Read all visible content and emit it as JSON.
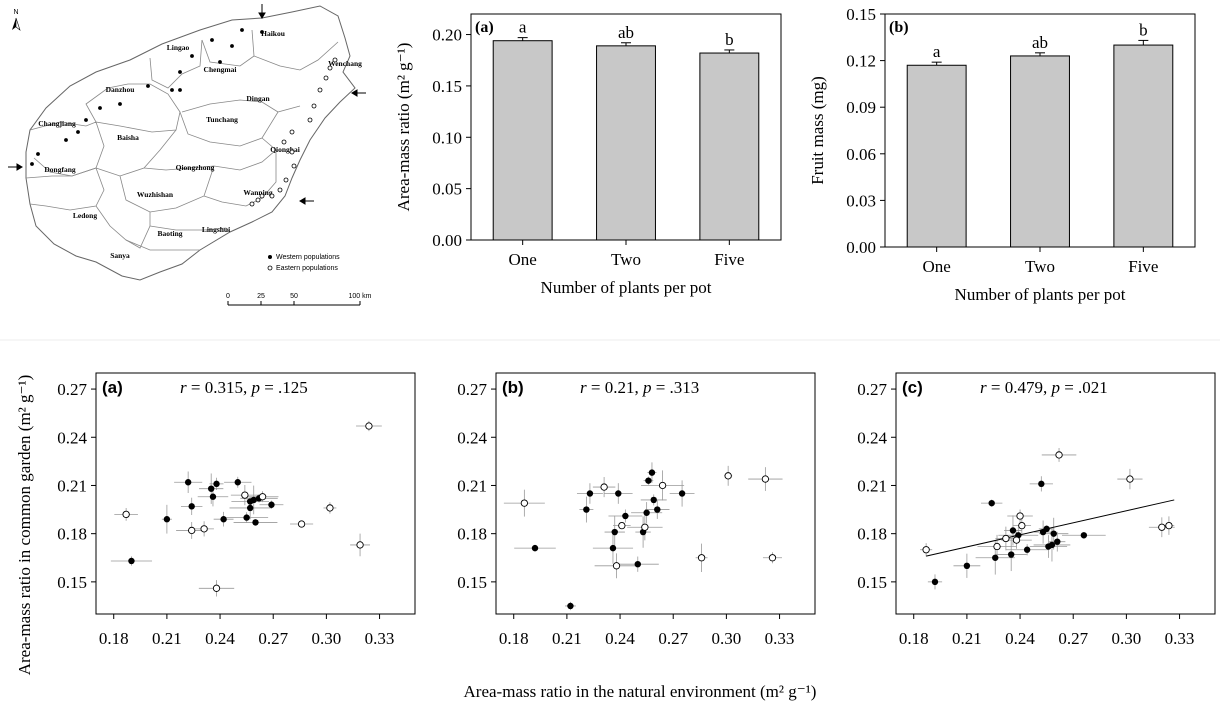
{
  "colors": {
    "bar_fill": "#c8c8c8",
    "axis": "#000000",
    "western_dot": "#000000",
    "eastern_dot": "#ffffff",
    "errbar": "#999999",
    "map_line": "#666666"
  },
  "map": {
    "regions": [
      "Lingao",
      "Haikou",
      "Chengmai",
      "Wenchang",
      "Danzhou",
      "Dingan",
      "Tunchang",
      "Changjiang",
      "Baisha",
      "Qionghai",
      "Qiongzhong",
      "Dongfang",
      "Wuzhishan",
      "Wanning",
      "Ledong",
      "Baoting",
      "Lingshui",
      "Sanya"
    ],
    "legend": {
      "western": "Western populations",
      "eastern": "Eastern populations"
    },
    "scale_labels": [
      "0",
      "25",
      "50",
      "100 km"
    ],
    "north": "N"
  },
  "chart_data": [
    {
      "type": "bar",
      "panel": "(a)",
      "categories": [
        "One",
        "Two",
        "Five"
      ],
      "values": [
        0.194,
        0.189,
        0.182
      ],
      "errors": [
        0.003,
        0.003,
        0.003
      ],
      "letters": [
        "a",
        "ab",
        "b"
      ],
      "xlabel": "Number of plants per pot",
      "ylabel": "Area-mass ratio (m² g⁻¹)",
      "ylim": [
        0,
        0.22
      ],
      "yticks": [
        "0.00",
        "0.05",
        "0.10",
        "0.15",
        "0.20"
      ]
    },
    {
      "type": "bar",
      "panel": "(b)",
      "categories": [
        "One",
        "Two",
        "Five"
      ],
      "values": [
        0.117,
        0.123,
        0.13
      ],
      "errors": [
        0.002,
        0.002,
        0.003
      ],
      "letters": [
        "a",
        "ab",
        "b"
      ],
      "xlabel": "Number of plants per pot",
      "ylabel": "Fruit mass (mg)",
      "ylim": [
        0,
        0.15
      ],
      "yticks": [
        "0.00",
        "0.03",
        "0.06",
        "0.09",
        "0.12",
        "0.15"
      ]
    },
    {
      "type": "scatter",
      "panel": "(a)",
      "stat_r": "0.315",
      "stat_p": ".125",
      "xlim": [
        0.17,
        0.35
      ],
      "ylim": [
        0.13,
        0.28
      ],
      "xticks": [
        "0.18",
        "0.21",
        "0.24",
        "0.27",
        "0.30",
        "0.33"
      ],
      "yticks": [
        "0.15",
        "0.18",
        "0.21",
        "0.24",
        "0.27"
      ],
      "western": [
        [
          0.19,
          0.163
        ],
        [
          0.21,
          0.189
        ],
        [
          0.222,
          0.212
        ],
        [
          0.224,
          0.197
        ],
        [
          0.235,
          0.208
        ],
        [
          0.236,
          0.203
        ],
        [
          0.238,
          0.211
        ],
        [
          0.242,
          0.189
        ],
        [
          0.25,
          0.212
        ],
        [
          0.255,
          0.19
        ],
        [
          0.257,
          0.2
        ],
        [
          0.259,
          0.201
        ],
        [
          0.26,
          0.187
        ],
        [
          0.262,
          0.202
        ],
        [
          0.269,
          0.198
        ],
        [
          0.257,
          0.196
        ]
      ],
      "eastern": [
        [
          0.187,
          0.192
        ],
        [
          0.224,
          0.182
        ],
        [
          0.231,
          0.183
        ],
        [
          0.238,
          0.146
        ],
        [
          0.254,
          0.204
        ],
        [
          0.264,
          0.203
        ],
        [
          0.286,
          0.186
        ],
        [
          0.302,
          0.196
        ],
        [
          0.319,
          0.173
        ],
        [
          0.324,
          0.247
        ]
      ]
    },
    {
      "type": "scatter",
      "panel": "(b)",
      "stat_r": "0.21",
      "stat_p": ".313",
      "xlim": [
        0.17,
        0.35
      ],
      "ylim": [
        0.13,
        0.28
      ],
      "xticks": [
        "0.18",
        "0.21",
        "0.24",
        "0.27",
        "0.30",
        "0.33"
      ],
      "yticks": [
        "0.15",
        "0.18",
        "0.21",
        "0.24",
        "0.27"
      ],
      "western": [
        [
          0.192,
          0.171
        ],
        [
          0.212,
          0.135
        ],
        [
          0.221,
          0.195
        ],
        [
          0.223,
          0.205
        ],
        [
          0.236,
          0.171
        ],
        [
          0.237,
          0.181
        ],
        [
          0.239,
          0.205
        ],
        [
          0.243,
          0.191
        ],
        [
          0.25,
          0.161
        ],
        [
          0.253,
          0.181
        ],
        [
          0.255,
          0.193
        ],
        [
          0.256,
          0.213
        ],
        [
          0.258,
          0.218
        ],
        [
          0.259,
          0.201
        ],
        [
          0.261,
          0.195
        ],
        [
          0.275,
          0.205
        ]
      ],
      "eastern": [
        [
          0.186,
          0.199
        ],
        [
          0.231,
          0.209
        ],
        [
          0.238,
          0.16
        ],
        [
          0.241,
          0.185
        ],
        [
          0.254,
          0.184
        ],
        [
          0.264,
          0.21
        ],
        [
          0.286,
          0.165
        ],
        [
          0.301,
          0.216
        ],
        [
          0.322,
          0.214
        ],
        [
          0.326,
          0.165
        ]
      ]
    },
    {
      "type": "scatter",
      "panel": "(c)",
      "stat_r": "0.479",
      "stat_p": ".021",
      "xlim": [
        0.17,
        0.35
      ],
      "ylim": [
        0.13,
        0.28
      ],
      "xticks": [
        "0.18",
        "0.21",
        "0.24",
        "0.27",
        "0.30",
        "0.33"
      ],
      "yticks": [
        "0.15",
        "0.18",
        "0.21",
        "0.24",
        "0.27"
      ],
      "fit_line": [
        [
          0.187,
          0.166
        ],
        [
          0.327,
          0.201
        ]
      ],
      "western": [
        [
          0.192,
          0.15
        ],
        [
          0.21,
          0.16
        ],
        [
          0.224,
          0.199
        ],
        [
          0.226,
          0.165
        ],
        [
          0.235,
          0.167
        ],
        [
          0.236,
          0.182
        ],
        [
          0.239,
          0.179
        ],
        [
          0.244,
          0.17
        ],
        [
          0.252,
          0.211
        ],
        [
          0.253,
          0.181
        ],
        [
          0.255,
          0.183
        ],
        [
          0.256,
          0.172
        ],
        [
          0.258,
          0.173
        ],
        [
          0.259,
          0.18
        ],
        [
          0.261,
          0.175
        ],
        [
          0.276,
          0.179
        ]
      ],
      "eastern": [
        [
          0.187,
          0.17
        ],
        [
          0.227,
          0.172
        ],
        [
          0.232,
          0.177
        ],
        [
          0.238,
          0.176
        ],
        [
          0.24,
          0.191
        ],
        [
          0.241,
          0.185
        ],
        [
          0.262,
          0.229
        ],
        [
          0.302,
          0.214
        ],
        [
          0.32,
          0.184
        ],
        [
          0.324,
          0.185
        ]
      ]
    }
  ],
  "scatter_labels": {
    "ylabel": "Area-mass ratio in common garden (m² g⁻¹)",
    "xlabel": "Area-mass ratio in the natural environment (m² g⁻¹)"
  }
}
